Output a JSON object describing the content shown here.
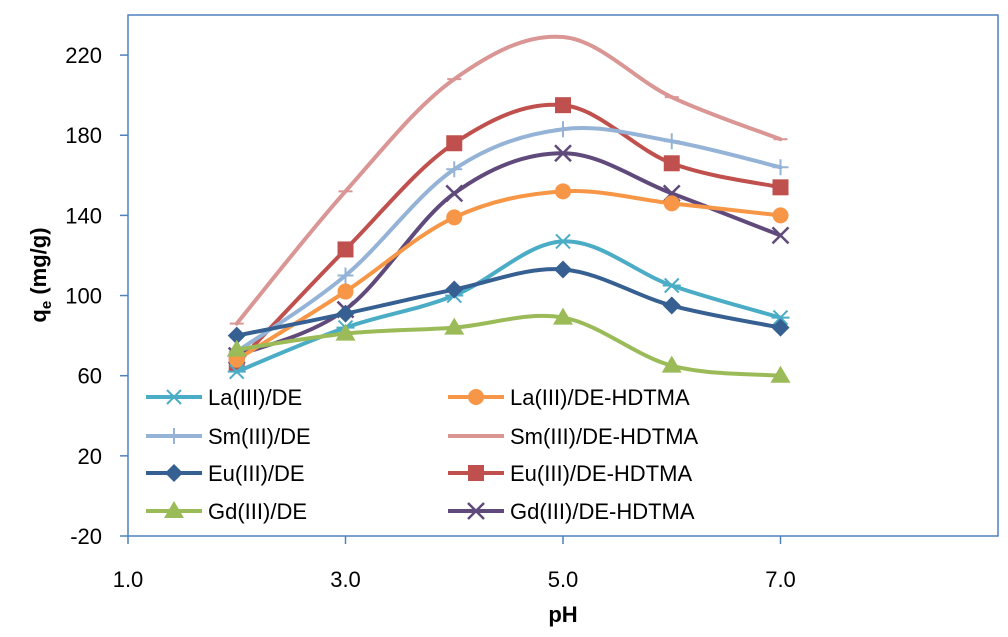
{
  "chart_data": {
    "type": "line",
    "title": "",
    "xlabel": "pH",
    "ylabel_main": "q",
    "ylabel_sub": "e",
    "ylabel_rest": " (mg/g)",
    "xlim": [
      1.0,
      9.0
    ],
    "ylim": [
      -20,
      240
    ],
    "x_ticks": [
      1.0,
      3.0,
      5.0,
      7.0
    ],
    "x_tick_labels": [
      "1.0",
      "3.0",
      "5.0",
      "7.0"
    ],
    "y_ticks": [
      -20,
      20,
      60,
      100,
      140,
      180,
      220
    ],
    "y_tick_labels": [
      "-20",
      "20",
      "60",
      "100",
      "140",
      "180",
      "220"
    ],
    "grid": false,
    "legend_position": "bottom-left, inside plot, two columns",
    "x": [
      2,
      3,
      4,
      5,
      6,
      7
    ],
    "series": [
      {
        "name": "La(III)/DE",
        "color": "#4bacc6",
        "marker": "asterisk",
        "values": [
          62,
          84,
          100,
          127,
          105,
          89
        ]
      },
      {
        "name": "La(III)/DE-HDTMA",
        "color": "#f79646",
        "marker": "circle",
        "values": [
          68,
          102,
          139,
          152,
          146,
          140
        ]
      },
      {
        "name": "Sm(III)/DE",
        "color": "#95b3d7",
        "marker": "plus",
        "values": [
          72,
          110,
          163,
          183,
          177,
          164
        ]
      },
      {
        "name": "Sm(III)/DE-HDTMA",
        "color": "#d99694",
        "marker": "dash",
        "values": [
          86,
          152,
          208,
          229,
          199,
          178
        ]
      },
      {
        "name": "Eu(III)/DE",
        "color": "#376092",
        "marker": "diamond",
        "values": [
          80,
          91,
          103,
          113,
          95,
          84
        ]
      },
      {
        "name": "Eu(III)/DE-HDTMA",
        "color": "#c0504d",
        "marker": "square",
        "values": [
          66,
          123,
          176,
          195,
          166,
          154
        ]
      },
      {
        "name": "Gd(III)/DE",
        "color": "#9bbb59",
        "marker": "triangle",
        "values": [
          73,
          81,
          84,
          89,
          65,
          60
        ]
      },
      {
        "name": "Gd(III)/DE-HDTMA",
        "color": "#604a7b",
        "marker": "x",
        "values": [
          70,
          93,
          151,
          171,
          151,
          130
        ]
      }
    ]
  }
}
